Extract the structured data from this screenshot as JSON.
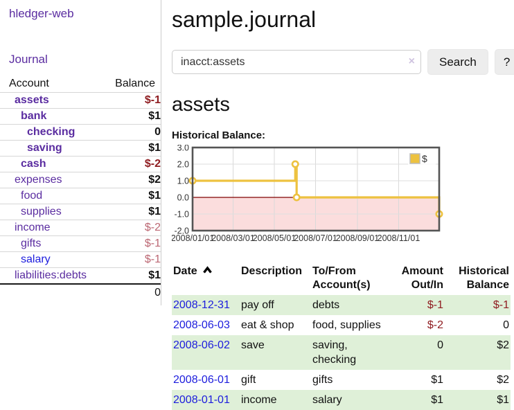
{
  "colors": {
    "link_purple": "#5a2ca0",
    "link_blue": "#1c1cdd",
    "negative_strong": "#8f1d21",
    "negative_soft": "#bb6672",
    "row_shade_green": "#dff0d8",
    "chart_line": "#edc240",
    "chart_zero_line": "#7f0000",
    "chart_negative_fill": "#fbdddd",
    "chart_border": "#545454"
  },
  "sidebar": {
    "brand": "hledger-web",
    "journal_link": "Journal",
    "accounts": {
      "headers": {
        "account": "Account",
        "balance": "Balance"
      },
      "rows": [
        {
          "name": "assets",
          "balance": "$-1",
          "level": 1,
          "bold": true,
          "neg": "strong"
        },
        {
          "name": "bank",
          "balance": "$1",
          "level": 2,
          "bold": true,
          "neg": "none"
        },
        {
          "name": "checking",
          "balance": "0",
          "level": 3,
          "bold": true,
          "neg": "none"
        },
        {
          "name": "saving",
          "balance": "$1",
          "level": 3,
          "bold": true,
          "neg": "none"
        },
        {
          "name": "cash",
          "balance": "$-2",
          "level": 2,
          "bold": true,
          "neg": "strong"
        },
        {
          "name": "expenses",
          "balance": "$2",
          "level": 1,
          "bold": false,
          "neg": "none"
        },
        {
          "name": "food",
          "balance": "$1",
          "level": 2,
          "bold": false,
          "neg": "none"
        },
        {
          "name": "supplies",
          "balance": "$1",
          "level": 2,
          "bold": false,
          "neg": "none"
        },
        {
          "name": "income",
          "balance": "$-2",
          "level": 1,
          "bold": false,
          "neg": "soft"
        },
        {
          "name": "gifts",
          "balance": "$-1",
          "level": 2,
          "bold": false,
          "neg": "soft"
        },
        {
          "name": "salary",
          "balance": "$-1",
          "level": 2,
          "bold": false,
          "neg": "soft",
          "link_blue": true
        },
        {
          "name": "liabilities:debts",
          "balance": "$1",
          "level": 1,
          "bold": false,
          "neg": "none"
        }
      ],
      "total": "0"
    }
  },
  "header": {
    "title": "sample.journal"
  },
  "search": {
    "value": "inacct:assets",
    "clear_icon": "×",
    "button_label": "Search",
    "help_label": "?"
  },
  "main": {
    "account_heading": "assets",
    "chart_label": "Historical Balance:"
  },
  "chart_data": {
    "type": "line",
    "step": true,
    "title": "Historical Balance",
    "series": [
      {
        "name": "$",
        "points": [
          {
            "date": "2008-01-01",
            "value": 1
          },
          {
            "date": "2008-06-01",
            "value": 2
          },
          {
            "date": "2008-06-03",
            "value": 0
          },
          {
            "date": "2008-12-31",
            "value": -1
          }
        ]
      }
    ],
    "x_ticks": [
      {
        "date": "2008-01-01",
        "label": "2008/01/01"
      },
      {
        "date": "2008-03-01",
        "label": "2008/03/01"
      },
      {
        "date": "2008-05-01",
        "label": "2008/05/01"
      },
      {
        "date": "2008-07-01",
        "label": "2008/07/01"
      },
      {
        "date": "2008-09-01",
        "label": "2008/09/01"
      },
      {
        "date": "2008-11-01",
        "label": "2008/11/01"
      }
    ],
    "y_ticks": [
      {
        "v": 3,
        "label": "3.0"
      },
      {
        "v": 2,
        "label": "2.0"
      },
      {
        "v": 1,
        "label": "1.0"
      },
      {
        "v": 0,
        "label": "0.0"
      },
      {
        "v": -1,
        "label": "-1.0"
      },
      {
        "v": -2,
        "label": "-2.0"
      }
    ],
    "ylim": [
      -2,
      3
    ],
    "xlim": [
      "2008-01-01",
      "2008-12-31"
    ],
    "legend": {
      "position": "top-right",
      "entries": [
        "$"
      ]
    },
    "grid": true,
    "negative_region_shaded": true
  },
  "register": {
    "headers": [
      "Date",
      "Description",
      "To/From\nAccount(s)",
      "Amount\nOut/In",
      "Historical\nBalance"
    ],
    "sort": {
      "column": "Date",
      "direction": "asc"
    },
    "rows": [
      {
        "date": "2008-12-31",
        "description": "pay off",
        "accounts": [
          "debts"
        ],
        "amount": "$-1",
        "amount_neg": true,
        "balance": "$-1",
        "balance_neg": true,
        "shaded": true
      },
      {
        "date": "2008-06-03",
        "description": "eat & shop",
        "accounts": [
          "food, supplies"
        ],
        "amount": "$-2",
        "amount_neg": true,
        "balance": "0",
        "balance_neg": false,
        "shaded": false
      },
      {
        "date": "2008-06-02",
        "description": "save",
        "accounts": [
          "saving,",
          "checking"
        ],
        "amount": "0",
        "amount_neg": false,
        "balance": "$2",
        "balance_neg": false,
        "shaded": true
      },
      {
        "date": "2008-06-01",
        "description": "gift",
        "accounts": [
          "gifts"
        ],
        "amount": "$1",
        "amount_neg": false,
        "balance": "$2",
        "balance_neg": false,
        "shaded": false
      },
      {
        "date": "2008-01-01",
        "description": "income",
        "accounts": [
          "salary"
        ],
        "amount": "$1",
        "amount_neg": false,
        "balance": "$1",
        "balance_neg": false,
        "shaded": true
      }
    ]
  }
}
